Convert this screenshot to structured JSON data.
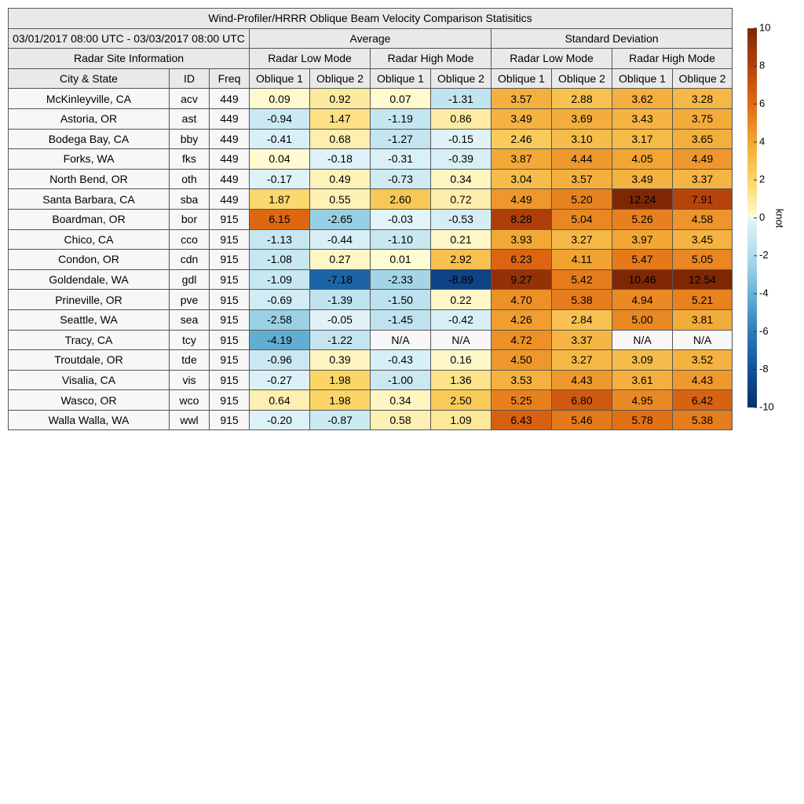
{
  "title": "Wind-Profiler/HRRR Oblique Beam Velocity Comparison Statisitics",
  "date_range": "03/01/2017 08:00 UTC - 03/03/2017 08:00 UTC",
  "group_headers": [
    "Average",
    "Standard Deviation"
  ],
  "site_info": "Radar Site Information",
  "mode_headers": [
    "Radar Low Mode",
    "Radar High Mode",
    "Radar Low Mode",
    "Radar High Mode"
  ],
  "column_headers": [
    "City & State",
    "ID",
    "Freq",
    "Oblique 1",
    "Oblique 2",
    "Oblique 1",
    "Oblique 2",
    "Oblique 1",
    "Oblique 2",
    "Oblique 1",
    "Oblique 2"
  ],
  "rows": [
    [
      "McKinleyville, CA",
      "acv",
      "449",
      "0.09",
      "0.92",
      "0.07",
      "-1.31",
      "3.57",
      "2.88",
      "3.62",
      "3.28"
    ],
    [
      "Astoria, OR",
      "ast",
      "449",
      "-0.94",
      "1.47",
      "-1.19",
      "0.86",
      "3.49",
      "3.69",
      "3.43",
      "3.75"
    ],
    [
      "Bodega Bay, CA",
      "bby",
      "449",
      "-0.41",
      "0.68",
      "-1.27",
      "-0.15",
      "2.46",
      "3.10",
      "3.17",
      "3.65"
    ],
    [
      "Forks, WA",
      "fks",
      "449",
      "0.04",
      "-0.18",
      "-0.31",
      "-0.39",
      "3.87",
      "4.44",
      "4.05",
      "4.49"
    ],
    [
      "North Bend, OR",
      "oth",
      "449",
      "-0.17",
      "0.49",
      "-0.73",
      "0.34",
      "3.04",
      "3.57",
      "3.49",
      "3.37"
    ],
    [
      "Santa Barbara, CA",
      "sba",
      "449",
      "1.87",
      "0.55",
      "2.60",
      "0.72",
      "4.49",
      "5.20",
      "12.24",
      "7.91"
    ],
    [
      "Boardman, OR",
      "bor",
      "915",
      "6.15",
      "-2.65",
      "-0.03",
      "-0.53",
      "8.28",
      "5.04",
      "5.26",
      "4.58"
    ],
    [
      "Chico, CA",
      "cco",
      "915",
      "-1.13",
      "-0.44",
      "-1.10",
      "0.21",
      "3.93",
      "3.27",
      "3.97",
      "3.45"
    ],
    [
      "Condon, OR",
      "cdn",
      "915",
      "-1.08",
      "0.27",
      "0.01",
      "2.92",
      "6.23",
      "4.11",
      "5.47",
      "5.05"
    ],
    [
      "Goldendale, WA",
      "gdl",
      "915",
      "-1.09",
      "-7.18",
      "-2.33",
      "-8.89",
      "9.27",
      "5.42",
      "10.46",
      "12.54"
    ],
    [
      "Prineville, OR",
      "pve",
      "915",
      "-0.69",
      "-1.39",
      "-1.50",
      "0.22",
      "4.70",
      "5.38",
      "4.94",
      "5.21"
    ],
    [
      "Seattle, WA",
      "sea",
      "915",
      "-2.58",
      "-0.05",
      "-1.45",
      "-0.42",
      "4.26",
      "2.84",
      "5.00",
      "3.81"
    ],
    [
      "Tracy, CA",
      "tcy",
      "915",
      "-4.19",
      "-1.22",
      "N/A",
      "N/A",
      "4.72",
      "3.37",
      "N/A",
      "N/A"
    ],
    [
      "Troutdale, OR",
      "tde",
      "915",
      "-0.96",
      "0.39",
      "-0.43",
      "0.16",
      "4.50",
      "3.27",
      "3.09",
      "3.52"
    ],
    [
      "Visalia, CA",
      "vis",
      "915",
      "-0.27",
      "1.98",
      "-1.00",
      "1.36",
      "3.53",
      "4.43",
      "3.61",
      "4.43"
    ],
    [
      "Wasco, OR",
      "wco",
      "915",
      "0.64",
      "1.98",
      "0.34",
      "2.50",
      "5.25",
      "6.80",
      "4.95",
      "6.42"
    ],
    [
      "Walla Walla, WA",
      "wwl",
      "915",
      "-0.20",
      "-0.87",
      "0.58",
      "1.09",
      "6.43",
      "5.46",
      "5.78",
      "5.38"
    ]
  ],
  "colorbar": {
    "label": "knot",
    "lim": [
      -10,
      10
    ],
    "ticks": [
      10,
      8,
      6,
      4,
      2,
      0,
      -2,
      -4,
      -6,
      -8,
      -10
    ],
    "colors": [
      "#7f2704",
      "#b5420b",
      "#e06a12",
      "#f2a634",
      "#fbd666",
      "#fffbd4",
      "#b0dcea",
      "#68b3d6",
      "#2e7db8",
      "#12529a",
      "#08306b"
    ],
    "below_zero_color": "#e2f4f9"
  }
}
